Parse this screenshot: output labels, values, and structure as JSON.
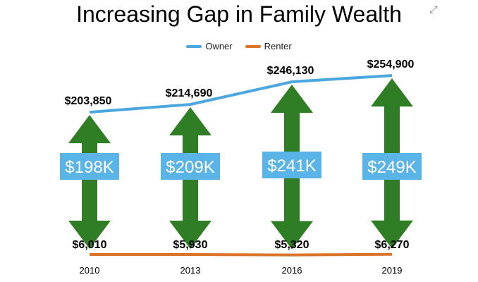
{
  "title": "Increasing Gap in Family Wealth",
  "colors": {
    "owner": "#4aa7e0",
    "renter": "#d9742a",
    "arrow": "#2f7d24",
    "box": "#5ab4e8",
    "box_text": "#ffffff"
  },
  "icons": {
    "expand": "expand-icon"
  },
  "chart_data": {
    "type": "line",
    "title": "Increasing Gap in Family Wealth",
    "categories": [
      "2010",
      "2013",
      "2016",
      "2019"
    ],
    "legend_position": "top",
    "series": [
      {
        "name": "Owner",
        "values": [
          203850,
          214690,
          246130,
          254900
        ],
        "labels": [
          "$203,850",
          "$214,690",
          "$246,130",
          "$254,900"
        ]
      },
      {
        "name": "Renter",
        "values": [
          6010,
          5930,
          5320,
          6270
        ],
        "labels": [
          "$6,010",
          "$5,930",
          "$5,320",
          "$6,270"
        ]
      }
    ],
    "gap": {
      "values": [
        198,
        209,
        241,
        249
      ],
      "labels": [
        "$198K",
        "$209K",
        "$241K",
        "$249K"
      ]
    },
    "ylim": [
      0,
      300000
    ],
    "grid": false
  }
}
